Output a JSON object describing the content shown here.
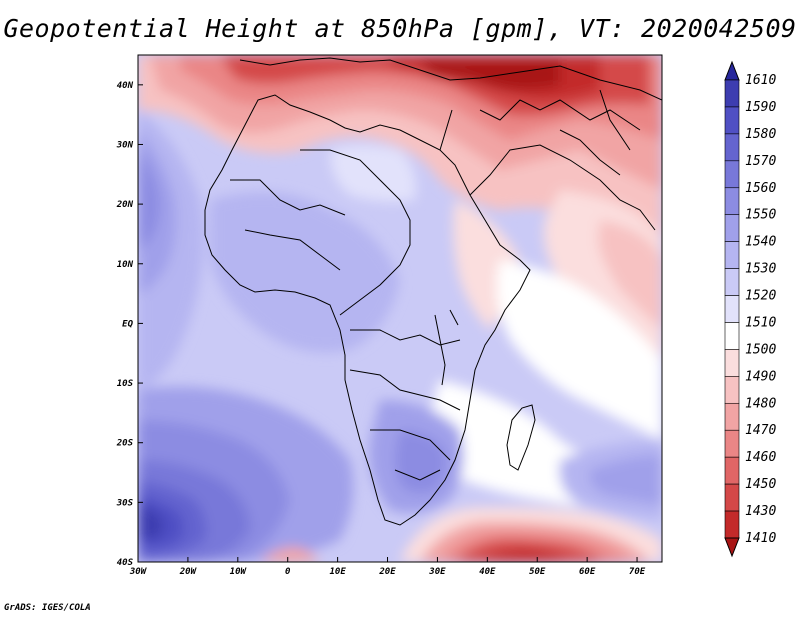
{
  "title": "Geopotential Height at 850hPa [gpm], VT: 2020042509",
  "credit": "GrADS: IGES/COLA",
  "map": {
    "projection": "lat-lon",
    "lon_range": [
      -30,
      75
    ],
    "lat_range": [
      -40,
      45
    ],
    "lon_ticks": [
      "30W",
      "20W",
      "10W",
      "0",
      "10E",
      "20E",
      "30E",
      "40E",
      "50E",
      "60E",
      "70E"
    ],
    "lat_ticks": [
      "40S",
      "30S",
      "20S",
      "10S",
      "EQ",
      "10N",
      "20N",
      "30N",
      "40N"
    ]
  },
  "colorbar": {
    "labels": [
      "1610",
      "1590",
      "1580",
      "1570",
      "1560",
      "1550",
      "1540",
      "1530",
      "1520",
      "1510",
      "1500",
      "1490",
      "1480",
      "1470",
      "1460",
      "1450",
      "1430",
      "1410"
    ],
    "colors": [
      "#27279c",
      "#3d3db0",
      "#5050c4",
      "#6464cf",
      "#7878d9",
      "#8c8ce2",
      "#a0a0ea",
      "#b5b5f1",
      "#cacaf6",
      "#e2e2fb",
      "#ffffff",
      "#fbdede",
      "#f7c2c2",
      "#f1a4a4",
      "#ea8686",
      "#e06666",
      "#d44848",
      "#c32a2a",
      "#a81414"
    ]
  }
}
